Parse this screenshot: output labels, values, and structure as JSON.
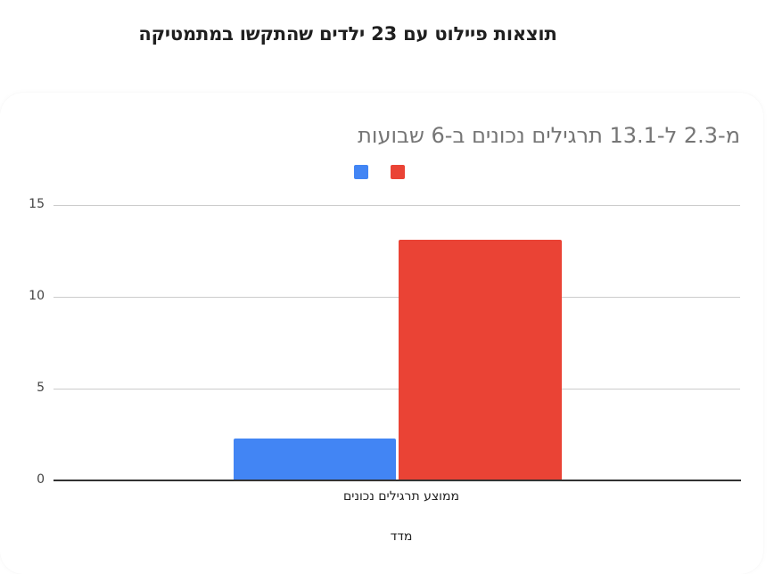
{
  "page": {
    "title": "תוצאות פיילוט עם 23 ילדים שהתקשו במתמטיקה"
  },
  "colors": {
    "series_before": "#4285f4",
    "series_after": "#ea4335",
    "gridline": "#cccccc",
    "baseline": "#333333",
    "chart_title": "#757575"
  },
  "chart_data": {
    "type": "bar",
    "title": "מ-2.3 ל-13.1 תרגילים נכונים ב-6 שבועות",
    "categories": [
      "ממוצע תרגילים נכונים"
    ],
    "series": [
      {
        "name": "",
        "color": "#4285f4",
        "values": [
          2.3
        ]
      },
      {
        "name": "",
        "color": "#ea4335",
        "values": [
          13.1
        ]
      }
    ],
    "xlabel": "מדד",
    "ylabel": "",
    "ylim": [
      0,
      15
    ],
    "yticks": [
      0,
      5,
      10,
      15
    ],
    "grid": true,
    "legend_position": "top"
  }
}
